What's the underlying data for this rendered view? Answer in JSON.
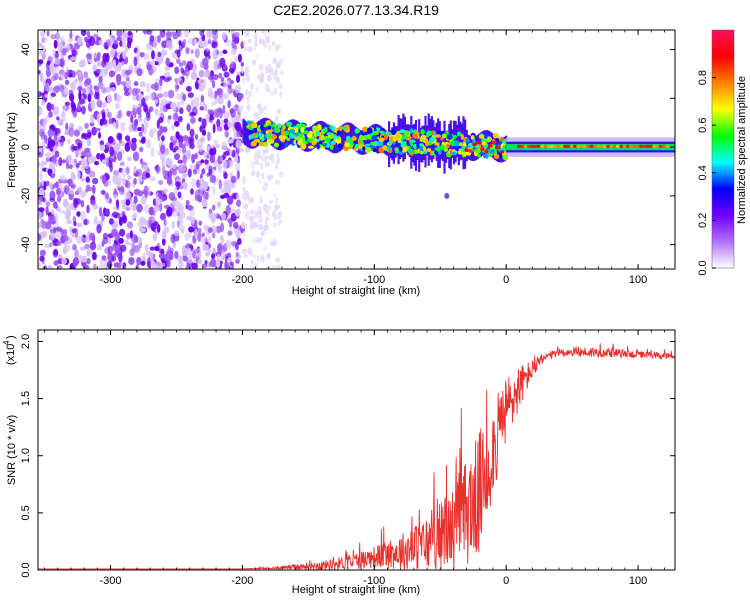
{
  "title": "C2E2.2026.077.13.34.R19",
  "chart_data": [
    {
      "type": "heatmap",
      "xlabel": "Height of straight line (km)",
      "ylabel": "Frequency (Hz)",
      "xlim": [
        -355,
        128
      ],
      "ylim": [
        -50,
        48
      ],
      "xticks": [
        -300,
        -200,
        -100,
        0,
        100
      ],
      "xtick_labels": [
        "-300",
        "-200",
        "-100",
        "0",
        "100"
      ],
      "yticks": [
        -40,
        -20,
        0,
        20,
        40
      ],
      "ytick_labels": [
        "-40",
        "-20",
        "0",
        "20",
        "40"
      ],
      "colorbar": {
        "label": "Normalized spectral amplitude",
        "range": [
          0,
          1
        ],
        "ticks": [
          0.0,
          0.2,
          0.4,
          0.6,
          0.8
        ],
        "tick_labels": [
          "0.0",
          "0.2",
          "0.4",
          "0.6",
          "0.8"
        ],
        "colormap": [
          "#ffffff",
          "#b070ff",
          "#7000ff",
          "#0000ff",
          "#00ffff",
          "#00ff00",
          "#ffff00",
          "#ff8000",
          "#ff0000",
          "#ff1060"
        ]
      },
      "regions": [
        {
          "name": "noise",
          "x_range": [
            -355,
            -200
          ],
          "freq_range": [
            -50,
            48
          ],
          "amplitude": 0.2
        },
        {
          "name": "noise-fade",
          "x_range": [
            -200,
            -170
          ],
          "freq_range": [
            -50,
            48
          ],
          "amplitude": 0.05
        },
        {
          "name": "signal-band",
          "x_range": [
            -200,
            0
          ],
          "center_freq": [
            6,
            0
          ],
          "amplitude": [
            0.3,
            0.8
          ]
        },
        {
          "name": "signal-line",
          "x_range": [
            0,
            128
          ],
          "center_freq": 0,
          "amplitude": 0.95
        }
      ]
    },
    {
      "type": "line",
      "xlabel": "Height of straight line (km)",
      "ylabel": "SNR (10 * v/v)",
      "y_scale_label": "(x10",
      "y_scale_exponent": "4",
      "xlim": [
        -355,
        128
      ],
      "ylim": [
        0,
        2.1
      ],
      "xticks": [
        -300,
        -200,
        -100,
        0,
        100
      ],
      "xtick_labels": [
        "-300",
        "-200",
        "-100",
        "0",
        "100"
      ],
      "yticks": [
        0.0,
        0.5,
        1.0,
        1.5,
        2.0
      ],
      "ytick_labels": [
        "0.0",
        "0.5",
        "1.0",
        "1.5",
        "2.0"
      ],
      "series": [
        {
          "name": "SNR",
          "color": "#e8302c",
          "x": [
            -355,
            -300,
            -250,
            -200,
            -175,
            -160,
            -140,
            -120,
            -100,
            -80,
            -60,
            -40,
            -30,
            -20,
            -10,
            0,
            10,
            20,
            30,
            40,
            60,
            80,
            100,
            128
          ],
          "y": [
            0.01,
            0.01,
            0.01,
            0.01,
            0.02,
            0.04,
            0.06,
            0.1,
            0.16,
            0.24,
            0.35,
            0.55,
            0.75,
            0.95,
            1.25,
            1.55,
            1.7,
            1.8,
            1.88,
            1.92,
            1.93,
            1.92,
            1.9,
            1.88
          ],
          "noise_amp": [
            0,
            0,
            0,
            0,
            0.01,
            0.03,
            0.05,
            0.08,
            0.12,
            0.2,
            0.3,
            0.45,
            0.6,
            0.7,
            0.5,
            0.4,
            0.25,
            0.1,
            0.05,
            0.04,
            0.06,
            0.05,
            0.04,
            0.03
          ]
        }
      ]
    }
  ]
}
